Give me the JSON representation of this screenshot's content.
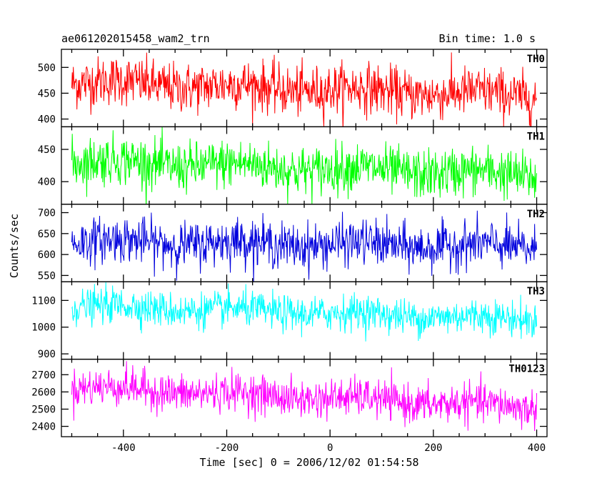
{
  "header": {
    "title": "ae061202015458_wam2_trn",
    "bin_time": "Bin time: 1.0 s"
  },
  "axes": {
    "xlabel": "Time [sec] 0 = 2006/12/02 01:54:58",
    "ylabel": "Counts/sec"
  },
  "chart_data": [
    {
      "type": "line",
      "series": [
        {
          "name": "TH0",
          "color": "#ff0000",
          "mean_start": 472,
          "mean_end": 445,
          "noise_sd": 24
        }
      ],
      "x_range": [
        -500,
        400
      ],
      "xlim": [
        -520,
        420
      ],
      "ylim": [
        385,
        535
      ],
      "yticks": [
        400,
        450,
        500
      ],
      "xticks": [
        -400,
        -200,
        0,
        200,
        400
      ]
    },
    {
      "type": "line",
      "series": [
        {
          "name": "TH1",
          "color": "#00ff00",
          "mean_start": 432,
          "mean_end": 410,
          "noise_sd": 19
        }
      ],
      "x_range": [
        -500,
        400
      ],
      "xlim": [
        -520,
        420
      ],
      "ylim": [
        365,
        485
      ],
      "yticks": [
        400,
        450
      ],
      "xticks": [
        -400,
        -200,
        0,
        200,
        400
      ]
    },
    {
      "type": "line",
      "series": [
        {
          "name": "TH2",
          "color": "#0000dd",
          "mean_start": 632,
          "mean_end": 618,
          "noise_sd": 27
        }
      ],
      "x_range": [
        -500,
        400
      ],
      "xlim": [
        -520,
        420
      ],
      "ylim": [
        535,
        720
      ],
      "yticks": [
        550,
        600,
        650,
        700
      ],
      "xticks": [
        -400,
        -200,
        0,
        200,
        400
      ]
    },
    {
      "type": "line",
      "series": [
        {
          "name": "TH3",
          "color": "#00ffff",
          "mean_start": 1080,
          "mean_end": 1030,
          "noise_sd": 33
        }
      ],
      "x_range": [
        -500,
        400
      ],
      "xlim": [
        -520,
        420
      ],
      "ylim": [
        880,
        1170
      ],
      "yticks": [
        900,
        1000,
        1100
      ],
      "xticks": [
        -400,
        -200,
        0,
        200,
        400
      ]
    },
    {
      "type": "line",
      "series": [
        {
          "name": "TH0123",
          "color": "#ff00ff",
          "mean_start": 2630,
          "mean_end": 2510,
          "noise_sd": 55
        }
      ],
      "x_range": [
        -500,
        400
      ],
      "xlim": [
        -520,
        420
      ],
      "ylim": [
        2340,
        2790
      ],
      "yticks": [
        2400,
        2500,
        2600,
        2700
      ],
      "xticks": [
        -400,
        -200,
        0,
        200,
        400
      ]
    }
  ]
}
